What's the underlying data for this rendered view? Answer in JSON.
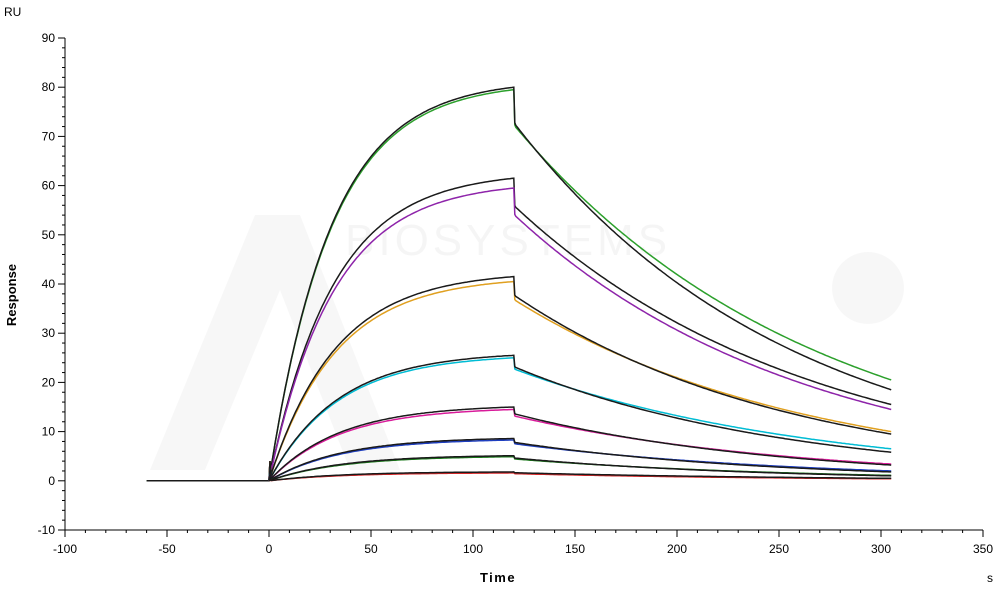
{
  "chart_data": {
    "type": "line",
    "title": "",
    "xlabel": "Time",
    "ylabel": "Response",
    "x_unit": "s",
    "y_unit": "RU",
    "xlim": [
      -100,
      350
    ],
    "ylim": [
      -10,
      90
    ],
    "x_ticks": [
      -100,
      -50,
      0,
      50,
      100,
      150,
      200,
      250,
      300,
      350
    ],
    "y_ticks": [
      -10,
      0,
      10,
      20,
      30,
      40,
      50,
      60,
      70,
      80,
      90
    ],
    "x_tick_labels": [
      "-100",
      "-50",
      "0",
      "50",
      "100",
      "150",
      "200",
      "250",
      "300",
      "350"
    ],
    "y_tick_labels": [
      "-10",
      "0",
      "10",
      "20",
      "30",
      "40",
      "50",
      "60",
      "70",
      "80",
      "90"
    ],
    "grid": false,
    "legend": "none",
    "watermark": "BIOSYSTEMS",
    "injection_start": 0,
    "injection_end": 120,
    "data_end": 305,
    "series": [
      {
        "color": "#2ca02c",
        "peak": 79.5,
        "end_value": 20.5
      },
      {
        "color": "#1a1a1a",
        "peak": 80.0,
        "end_value": 18.5
      },
      {
        "color": "#1a1a1a",
        "peak": 61.5,
        "end_value": 15.5
      },
      {
        "color": "#8e24aa",
        "peak": 59.5,
        "end_value": 14.5
      },
      {
        "color": "#e0a020",
        "peak": 40.5,
        "end_value": 10.0
      },
      {
        "color": "#1a1a1a",
        "peak": 41.5,
        "end_value": 9.5
      },
      {
        "color": "#00bcd4",
        "peak": 25.0,
        "end_value": 6.5
      },
      {
        "color": "#1a1a1a",
        "peak": 25.5,
        "end_value": 5.8
      },
      {
        "color": "#d81b9a",
        "peak": 14.5,
        "end_value": 3.4
      },
      {
        "color": "#1a1a1a",
        "peak": 15.0,
        "end_value": 3.2
      },
      {
        "color": "#1f3fbf",
        "peak": 8.3,
        "end_value": 2.0
      },
      {
        "color": "#1a1a1a",
        "peak": 8.6,
        "end_value": 1.8
      },
      {
        "color": "#1b7a1b",
        "peak": 4.9,
        "end_value": 1.1
      },
      {
        "color": "#1a1a1a",
        "peak": 5.1,
        "end_value": 1.0
      },
      {
        "color": "#d62728",
        "peak": 1.6,
        "end_value": 0.4
      },
      {
        "color": "#1a1a1a",
        "peak": 1.8,
        "end_value": 0.5
      }
    ]
  }
}
